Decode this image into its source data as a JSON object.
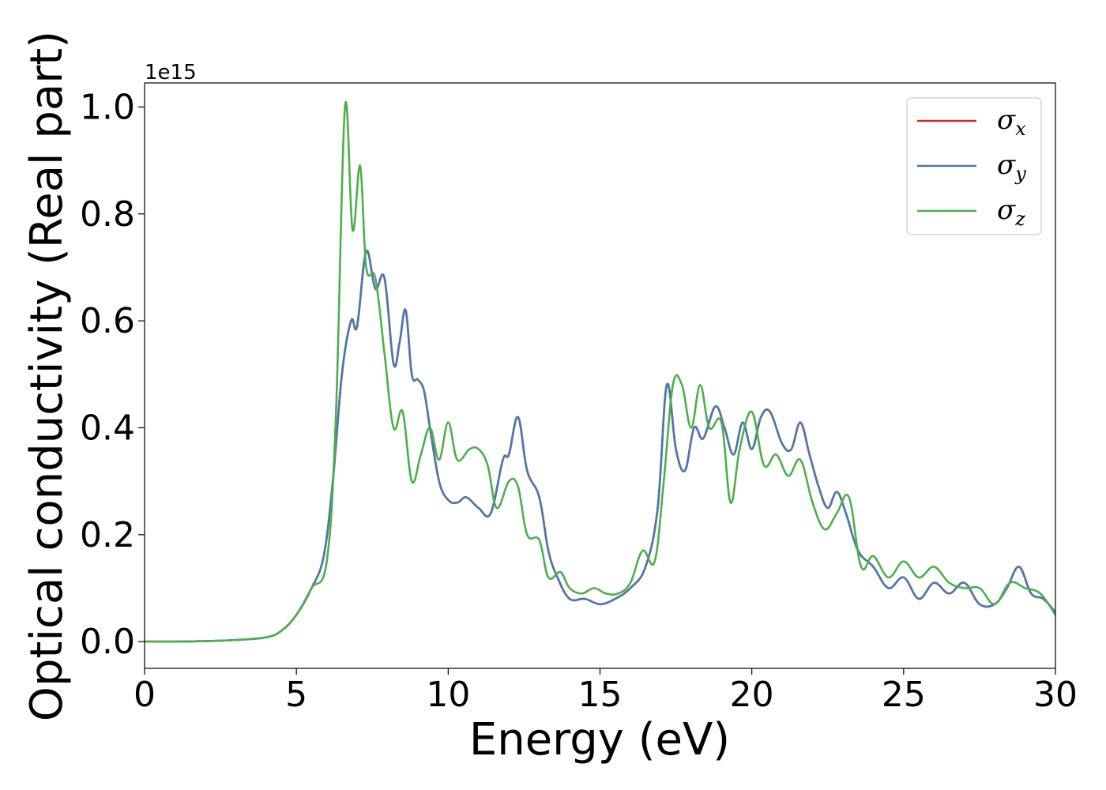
{
  "chart_data": {
    "type": "line",
    "xlabel": "Energy (eV)",
    "ylabel": "Optical conductivity (Real part)",
    "y_offset_label": "1e15",
    "xlim": [
      0,
      30
    ],
    "ylim": [
      -0.05,
      1.045
    ],
    "y_scale_factor": 1000000000000000.0,
    "xticks": [
      0,
      5,
      10,
      15,
      20,
      25,
      30
    ],
    "yticks": [
      0.0,
      0.2,
      0.4,
      0.6,
      0.8,
      1.0
    ],
    "xtick_labels": [
      "0",
      "5",
      "10",
      "15",
      "20",
      "25",
      "30"
    ],
    "ytick_labels": [
      "0.0",
      "0.2",
      "0.4",
      "0.6",
      "0.8",
      "1.0"
    ],
    "grid": false,
    "legend_position": "top-right",
    "series": [
      {
        "name": "σx",
        "symbol": "σ",
        "subscript": "x",
        "color": "#d62728",
        "x": [
          0,
          1,
          2,
          3,
          4,
          4.5,
          5,
          5.5,
          5.9,
          6.2,
          6.5,
          6.8,
          7.0,
          7.3,
          7.6,
          7.9,
          8.2,
          8.4,
          8.6,
          8.8,
          9.0,
          9.2,
          9.4,
          9.7,
          10,
          10.3,
          10.6,
          11.0,
          11.4,
          11.8,
          12.0,
          12.3,
          12.6,
          13.0,
          13.3,
          13.6,
          14.0,
          14.5,
          15.0,
          15.5,
          16.0,
          16.5,
          16.9,
          17.2,
          17.5,
          17.8,
          18.1,
          18.4,
          18.8,
          19.1,
          19.4,
          19.7,
          20.0,
          20.3,
          20.6,
          21.0,
          21.3,
          21.6,
          21.9,
          22.2,
          22.5,
          22.8,
          23.1,
          23.5,
          24.0,
          24.5,
          25.0,
          25.5,
          26.0,
          26.5,
          27.0,
          27.5,
          28.0,
          28.4,
          28.8,
          29.2,
          29.6,
          30
        ],
        "y": [
          0,
          0,
          0.001,
          0.003,
          0.008,
          0.02,
          0.05,
          0.1,
          0.16,
          0.3,
          0.5,
          0.6,
          0.59,
          0.73,
          0.66,
          0.68,
          0.52,
          0.56,
          0.62,
          0.5,
          0.49,
          0.47,
          0.4,
          0.3,
          0.265,
          0.26,
          0.27,
          0.25,
          0.24,
          0.34,
          0.35,
          0.42,
          0.32,
          0.27,
          0.17,
          0.12,
          0.08,
          0.08,
          0.07,
          0.08,
          0.1,
          0.14,
          0.25,
          0.48,
          0.36,
          0.32,
          0.4,
          0.38,
          0.44,
          0.4,
          0.35,
          0.41,
          0.36,
          0.42,
          0.43,
          0.37,
          0.36,
          0.41,
          0.35,
          0.29,
          0.25,
          0.28,
          0.24,
          0.17,
          0.14,
          0.1,
          0.12,
          0.08,
          0.11,
          0.09,
          0.11,
          0.07,
          0.07,
          0.1,
          0.14,
          0.09,
          0.08,
          0.055
        ]
      },
      {
        "name": "σy",
        "symbol": "σ",
        "subscript": "y",
        "color": "#4a78b0",
        "x": [
          0,
          1,
          2,
          3,
          4,
          4.5,
          5,
          5.5,
          5.9,
          6.2,
          6.5,
          6.8,
          7.0,
          7.3,
          7.6,
          7.9,
          8.2,
          8.4,
          8.6,
          8.8,
          9.0,
          9.2,
          9.4,
          9.7,
          10,
          10.3,
          10.6,
          11.0,
          11.4,
          11.8,
          12.0,
          12.3,
          12.6,
          13.0,
          13.3,
          13.6,
          14.0,
          14.5,
          15.0,
          15.5,
          16.0,
          16.5,
          16.9,
          17.2,
          17.5,
          17.8,
          18.1,
          18.4,
          18.8,
          19.1,
          19.4,
          19.7,
          20.0,
          20.3,
          20.6,
          21.0,
          21.3,
          21.6,
          21.9,
          22.2,
          22.5,
          22.8,
          23.1,
          23.5,
          24.0,
          24.5,
          25.0,
          25.5,
          26.0,
          26.5,
          27.0,
          27.5,
          28.0,
          28.4,
          28.8,
          29.2,
          29.6,
          30
        ],
        "y": [
          0,
          0,
          0.001,
          0.003,
          0.008,
          0.02,
          0.05,
          0.1,
          0.16,
          0.3,
          0.5,
          0.6,
          0.59,
          0.73,
          0.66,
          0.68,
          0.52,
          0.56,
          0.62,
          0.5,
          0.49,
          0.47,
          0.4,
          0.3,
          0.265,
          0.26,
          0.27,
          0.25,
          0.24,
          0.34,
          0.35,
          0.42,
          0.32,
          0.27,
          0.17,
          0.12,
          0.08,
          0.08,
          0.07,
          0.08,
          0.1,
          0.14,
          0.25,
          0.48,
          0.36,
          0.32,
          0.4,
          0.38,
          0.44,
          0.4,
          0.35,
          0.41,
          0.36,
          0.42,
          0.43,
          0.37,
          0.36,
          0.41,
          0.35,
          0.29,
          0.25,
          0.28,
          0.24,
          0.17,
          0.14,
          0.1,
          0.12,
          0.08,
          0.11,
          0.09,
          0.11,
          0.07,
          0.07,
          0.1,
          0.14,
          0.09,
          0.08,
          0.055
        ]
      },
      {
        "name": "σz",
        "symbol": "σ",
        "subscript": "z",
        "color": "#4daf4a",
        "x": [
          0,
          1,
          2,
          3,
          4,
          4.5,
          5,
          5.5,
          6.0,
          6.3,
          6.6,
          6.85,
          7.1,
          7.3,
          7.6,
          7.9,
          8.2,
          8.5,
          8.8,
          9.1,
          9.4,
          9.7,
          10.0,
          10.3,
          10.7,
          11.0,
          11.3,
          11.6,
          12.0,
          12.3,
          12.6,
          13.0,
          13.3,
          13.7,
          14.0,
          14.4,
          14.8,
          15.2,
          15.6,
          16.0,
          16.4,
          16.8,
          17.1,
          17.4,
          17.7,
          18.0,
          18.3,
          18.6,
          19.0,
          19.3,
          19.6,
          20.0,
          20.4,
          20.8,
          21.2,
          21.6,
          22.0,
          22.4,
          22.8,
          23.2,
          23.6,
          24.0,
          24.5,
          25.0,
          25.5,
          26.0,
          26.5,
          27.0,
          27.5,
          28.0,
          28.5,
          29.0,
          29.5,
          30
        ],
        "y": [
          0,
          0,
          0.001,
          0.003,
          0.008,
          0.02,
          0.05,
          0.1,
          0.15,
          0.42,
          1.0,
          0.77,
          0.89,
          0.7,
          0.68,
          0.54,
          0.4,
          0.43,
          0.3,
          0.35,
          0.4,
          0.34,
          0.41,
          0.34,
          0.36,
          0.36,
          0.33,
          0.25,
          0.3,
          0.29,
          0.2,
          0.19,
          0.12,
          0.13,
          0.1,
          0.09,
          0.1,
          0.09,
          0.09,
          0.11,
          0.17,
          0.15,
          0.3,
          0.48,
          0.48,
          0.4,
          0.48,
          0.4,
          0.41,
          0.26,
          0.36,
          0.43,
          0.33,
          0.35,
          0.31,
          0.34,
          0.26,
          0.21,
          0.24,
          0.27,
          0.14,
          0.16,
          0.12,
          0.15,
          0.12,
          0.14,
          0.11,
          0.1,
          0.1,
          0.07,
          0.11,
          0.1,
          0.09,
          0.05
        ]
      }
    ]
  }
}
